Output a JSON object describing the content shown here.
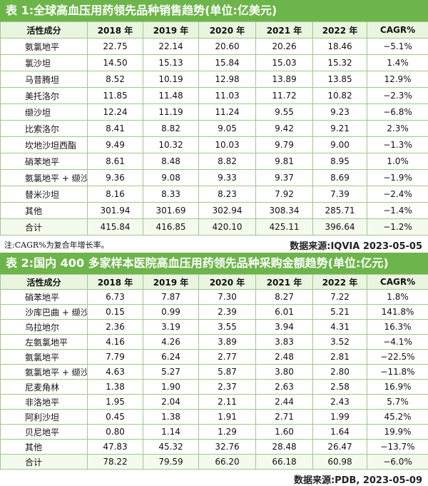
{
  "table1": {
    "title": "表 1:全球高血压用药领先品种销售趋势(单位:亿美元)",
    "headers": [
      "活性成分",
      "2018 年",
      "2019 年",
      "2020 年",
      "2021 年",
      "2022 年",
      "CAGR%"
    ],
    "rows": [
      [
        "氨氯地平",
        "22.75",
        "22.14",
        "20.60",
        "20.26",
        "18.46",
        "−5.1%"
      ],
      [
        "氯沙坦",
        "14.50",
        "15.13",
        "15.84",
        "15.03",
        "15.32",
        "1.4%"
      ],
      [
        "马昔腾坦",
        "8.52",
        "10.19",
        "12.98",
        "13.89",
        "13.85",
        "12.9%"
      ],
      [
        "美托洛尔",
        "11.85",
        "11.48",
        "11.03",
        "11.72",
        "10.82",
        "−2.3%"
      ],
      [
        "缬沙坦",
        "12.24",
        "11.19",
        "11.24",
        "9.55",
        "9.23",
        "−6.8%"
      ],
      [
        "比索洛尔",
        "8.41",
        "8.82",
        "9.05",
        "9.42",
        "9.21",
        "2.3%"
      ],
      [
        "坎地沙坦西酯",
        "9.49",
        "10.32",
        "10.03",
        "9.79",
        "9.00",
        "−1.3%"
      ],
      [
        "硝苯地平",
        "8.61",
        "8.48",
        "8.82",
        "9.81",
        "8.95",
        "1.0%"
      ],
      [
        "氨氯地平 + 缬沙坦",
        "9.36",
        "9.08",
        "9.33",
        "9.37",
        "8.69",
        "−1.9%"
      ],
      [
        "替米沙坦",
        "8.16",
        "8.33",
        "8.23",
        "7.92",
        "7.39",
        "−2.4%"
      ],
      [
        "其他",
        "301.94",
        "301.69",
        "302.94",
        "308.34",
        "285.71",
        "−1.4%"
      ],
      [
        "合计",
        "415.84",
        "416.85",
        "420.10",
        "425.11",
        "396.64",
        "−1.2%"
      ]
    ],
    "note": "注:CAGR%为复合年增长率。",
    "source": "数据来源:IQVIA  2023-05-05"
  },
  "table2": {
    "title": "表 2:国内 400 多家样本医院高血压用药领先品种采购金额趋势(单位:亿元)",
    "headers": [
      "活性成分",
      "2018 年",
      "2019 年",
      "2020 年",
      "2021 年",
      "2022 年",
      "CAGR%"
    ],
    "rows": [
      [
        "硝苯地平",
        "6.73",
        "7.87",
        "7.30",
        "8.27",
        "7.22",
        "1.8%"
      ],
      [
        "沙库巴曲 + 缬沙坦",
        "0.15",
        "0.99",
        "2.39",
        "6.01",
        "5.21",
        "141.8%"
      ],
      [
        "乌拉地尔",
        "2.36",
        "3.19",
        "3.55",
        "3.94",
        "4.31",
        "16.3%"
      ],
      [
        "左氨氯地平",
        "4.16",
        "4.26",
        "3.89",
        "3.83",
        "3.52",
        "−4.1%"
      ],
      [
        "氨氯地平",
        "7.79",
        "6.24",
        "2.77",
        "2.48",
        "2.81",
        "−22.5%"
      ],
      [
        "氨氯地平 + 缬沙坦",
        "4.63",
        "5.27",
        "5.87",
        "3.80",
        "2.80",
        "−11.8%"
      ],
      [
        "尼麦角林",
        "1.38",
        "1.90",
        "2.37",
        "2.63",
        "2.58",
        "16.9%"
      ],
      [
        "非洛地平",
        "1.95",
        "2.04",
        "2.11",
        "2.44",
        "2.43",
        "5.7%"
      ],
      [
        "阿利沙坦",
        "0.45",
        "1.38",
        "1.91",
        "2.71",
        "1.99",
        "45.2%"
      ],
      [
        "贝尼地平",
        "0.80",
        "1.14",
        "1.29",
        "1.60",
        "1.64",
        "19.9%"
      ],
      [
        "其他",
        "47.83",
        "45.32",
        "32.76",
        "28.48",
        "26.47",
        "−13.7%"
      ],
      [
        "合计",
        "78.22",
        "79.59",
        "66.20",
        "66.18",
        "60.98",
        "−6.0%"
      ]
    ],
    "source": "数据来源:PDB, 2023-05-09"
  },
  "colors": {
    "title_bg": "#6db54a",
    "header_bg": "#eaf5df",
    "border": "#9cc98a"
  }
}
